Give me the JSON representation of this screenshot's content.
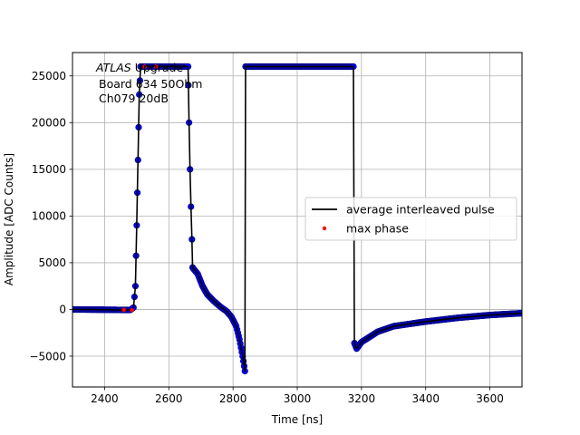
{
  "chart_data": {
    "type": "scatter",
    "xlabel": "Time [ns]",
    "ylabel": "Amplitude [ADC Counts]",
    "xlim": [
      2300,
      3700
    ],
    "ylim": [
      -8300,
      27500
    ],
    "xticks": [
      2400,
      2600,
      2800,
      3000,
      3200,
      3400,
      3600
    ],
    "yticks": [
      -5000,
      0,
      5000,
      10000,
      15000,
      20000,
      25000
    ],
    "grid": true,
    "legend_position": "center-right",
    "annotation": {
      "line1_italic": "ATLAS",
      "line1_rest": " Upgrade",
      "line2": "Board 634 50Ohm",
      "line3": "Ch079 20dB"
    },
    "series": [
      {
        "name": "average interleaved pulse",
        "style": "line",
        "color": "#000000",
        "marker_color": "#0000ff",
        "points": [
          [
            2300,
            0
          ],
          [
            2480,
            -60
          ],
          [
            2490,
            200
          ],
          [
            2496,
            2500
          ],
          [
            2500,
            9000
          ],
          [
            2504,
            16000
          ],
          [
            2508,
            23000
          ],
          [
            2512,
            26000
          ],
          [
            2520,
            26000
          ],
          [
            2660,
            26000
          ],
          [
            2661,
            24000
          ],
          [
            2663,
            20000
          ],
          [
            2666,
            15000
          ],
          [
            2669,
            11000
          ],
          [
            2672,
            7500
          ],
          [
            2674,
            4500
          ],
          [
            2678,
            4300
          ],
          [
            2690,
            3800
          ],
          [
            2705,
            2500
          ],
          [
            2720,
            1600
          ],
          [
            2740,
            900
          ],
          [
            2760,
            300
          ],
          [
            2780,
            -200
          ],
          [
            2795,
            -800
          ],
          [
            2810,
            -1800
          ],
          [
            2820,
            -3200
          ],
          [
            2830,
            -5000
          ],
          [
            2837,
            -6600
          ],
          [
            2839,
            26000
          ],
          [
            3175,
            26000
          ],
          [
            3178,
            -3600
          ],
          [
            3185,
            -4200
          ],
          [
            3200,
            -3500
          ],
          [
            3250,
            -2400
          ],
          [
            3300,
            -1800
          ],
          [
            3400,
            -1300
          ],
          [
            3500,
            -900
          ],
          [
            3600,
            -600
          ],
          [
            3700,
            -400
          ]
        ]
      },
      {
        "name": "max phase",
        "style": "points",
        "color": "#ff0000",
        "points": [
          [
            2460,
            -50
          ],
          [
            2485,
            -80
          ],
          [
            2525,
            26000
          ],
          [
            2560,
            26000
          ]
        ]
      }
    ]
  }
}
